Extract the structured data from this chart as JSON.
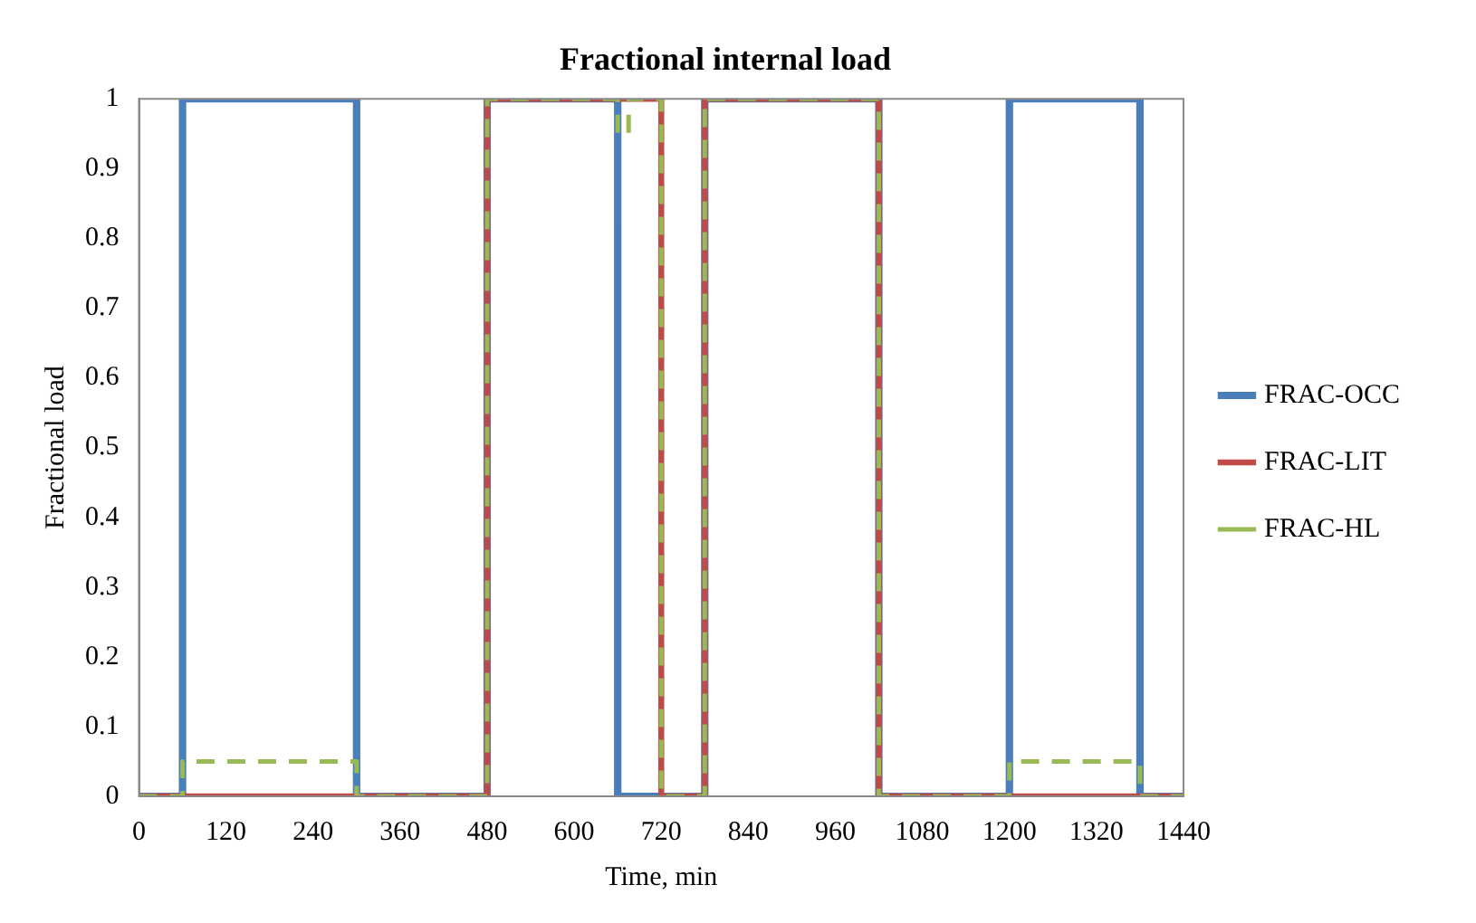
{
  "chart_data": {
    "type": "step",
    "title": "Fractional internal load",
    "xlabel": "Time, min",
    "ylabel": "Fractional load",
    "xlim": [
      0,
      1440
    ],
    "xticks": [
      0,
      120,
      240,
      360,
      480,
      600,
      720,
      840,
      960,
      {
        "value": 1080,
        "label": "1080"
      },
      {
        "value": 1200,
        "label": "1200"
      },
      {
        "value": 1320,
        "label": "1320"
      },
      {
        "value": 1440,
        "label": "1440"
      }
    ],
    "ylim": [
      0,
      1
    ],
    "yticks": [
      0,
      0.1,
      0.2,
      0.3,
      0.4,
      0.5,
      0.6,
      0.7,
      0.8,
      0.9,
      1
    ],
    "grid": false,
    "legend": "right",
    "marker": "none",
    "series": [
      {
        "name": "FRAC-OCC",
        "color": "#4a7ebb",
        "line_style": "solid",
        "x": [
          0,
          60,
          300,
          480,
          660,
          780,
          1020,
          1200,
          1380,
          1440
        ],
        "values": [
          0,
          1,
          0,
          1,
          0,
          1,
          0,
          1,
          0,
          0
        ]
      },
      {
        "name": "FRAC-LIT",
        "color": "#be4b48",
        "line_style": "solid",
        "x": [
          0,
          480,
          720,
          780,
          1020,
          1440
        ],
        "values": [
          0,
          1,
          0,
          1,
          0,
          0
        ]
      },
      {
        "name": "FRAC-HL",
        "color": "#98b954",
        "line_style": "dashed",
        "x": [
          0,
          60,
          300,
          480,
          660,
          675,
          720,
          780,
          1020,
          1200,
          1380,
          1440
        ],
        "values": [
          0,
          0.05,
          0,
          1,
          0.95,
          1,
          0,
          1,
          0,
          0.05,
          0,
          0
        ]
      }
    ]
  }
}
